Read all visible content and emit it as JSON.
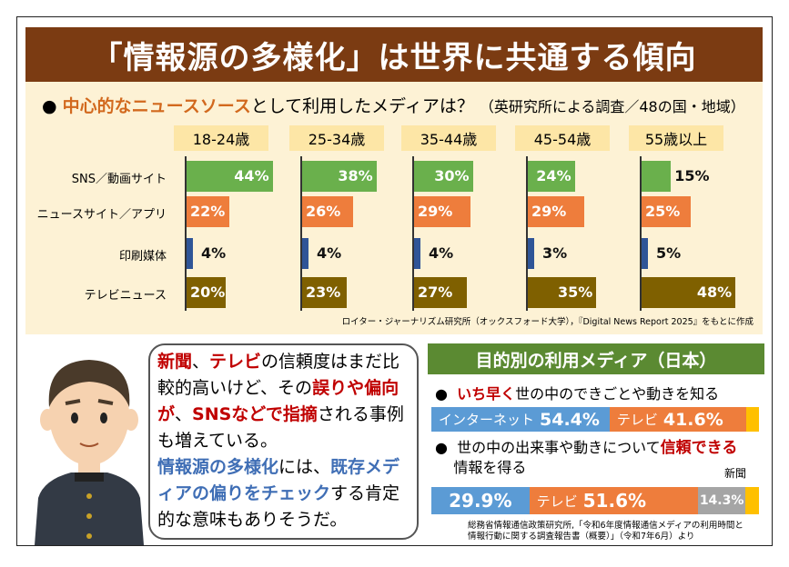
{
  "title": "「情報源の多様化」は世界に共通する傾向",
  "top": {
    "question_bullet": "●",
    "question_highlight": "中心的なニュースソース",
    "question_rest": "として利用したメディアは？",
    "question_sub": "（英研究所による調査／48の国・地域）",
    "source": "ロイター・ジャーナリズム研究所（オックスフォード大学），『Digital News Report 2025』をもとに作成"
  },
  "chart_data": {
    "type": "bar",
    "orientation": "horizontal",
    "groups": [
      "18-24歳",
      "25-34歳",
      "35-44歳",
      "45-54歳",
      "55歳以上"
    ],
    "categories": [
      "SNS／動画サイト",
      "ニュースサイト／アプリ",
      "印刷媒体",
      "テレビニュース"
    ],
    "colors": [
      "#6ab04c",
      "#ee7d3c",
      "#2f5597",
      "#7f6000"
    ],
    "values": [
      [
        44,
        22,
        4,
        20
      ],
      [
        38,
        26,
        4,
        23
      ],
      [
        30,
        29,
        4,
        27
      ],
      [
        24,
        29,
        3,
        35
      ],
      [
        15,
        25,
        5,
        48
      ]
    ],
    "unit": "%"
  },
  "bubble": {
    "p1": "新聞",
    "p2": "、",
    "p3": "テレビ",
    "p4": "の信頼度はまだ比較的高いけど、その",
    "p5": "誤りや偏向が",
    "p6": "、",
    "p7": "SNSなどで指摘",
    "p8": "される事例も増えている。",
    "p9": "情報源の多様化",
    "p10": "には、",
    "p11": "既存メディアの偏りをチェック",
    "p12": "する肯定的な意味もありそうだ。"
  },
  "right": {
    "title": "目的別の利用メディア（日本）",
    "q1_hl": "いち早く",
    "q1_rest": "世の中のできごとや動きを知る",
    "q2_pre": "世の中の出来事や動きについて",
    "q2_hl": "信頼できる",
    "q2_post": "情報を得る",
    "bar1": [
      {
        "label": "インターネット",
        "value": 54.4,
        "text": "54.4%",
        "color": "#5b9bd5"
      },
      {
        "label": "テレビ",
        "value": 41.6,
        "text": "41.6%",
        "color": "#ee7d3c"
      },
      {
        "label": "",
        "value": 4.0,
        "text": "",
        "color": "#ffc000"
      }
    ],
    "bar2": [
      {
        "label": "",
        "value": 29.9,
        "text": "29.9%",
        "color": "#5b9bd5"
      },
      {
        "label": "テレビ",
        "value": 51.6,
        "text": "51.6%",
        "color": "#ee7d3c"
      },
      {
        "label": "",
        "value": 14.3,
        "text": "14.3%",
        "color": "#a5a5a5"
      },
      {
        "label": "",
        "value": 4.2,
        "text": "",
        "color": "#ffc000"
      }
    ],
    "newspaper_label": "新聞",
    "source1": "総務省情報通信政策研究所,「令和6年度情報通信メディアの利用時間と",
    "source2": "情報行動に関する調査報告書（概要）」（令和7年6月）より"
  }
}
